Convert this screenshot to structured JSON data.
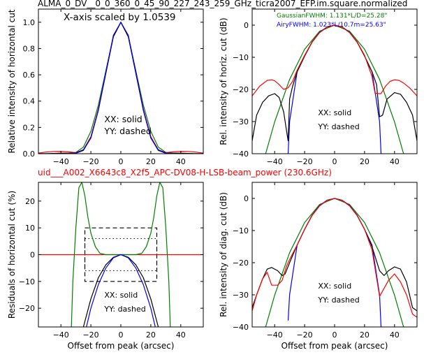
{
  "figure": {
    "title": "ALMA_0_DV__0_0_360_0_45_90_227_243_259_GHz_ticra2007_EFP.im.square.normalized",
    "subtitle": "uid___A002_X6643c8_X2f5_APC-DV08-H-LSB-beam_power (230.6GHz)",
    "subtitle_color": "#ff0000"
  },
  "colors": {
    "XX": "#000000",
    "YY": "#0000ff",
    "diag": "#ff0000",
    "gaussian": "#008000",
    "airy": "#0000ff",
    "zero_line": "#ff0000"
  },
  "chart_data": [
    {
      "id": "top-left",
      "type": "line",
      "annotation": "X-axis scaled by 1.0539",
      "xlabel": "",
      "ylabel": "Relative intensity of horizontal cut",
      "xlim": [
        -55,
        55
      ],
      "ylim": [
        0,
        1.1
      ],
      "xticks": [
        -40,
        -20,
        0,
        20,
        40
      ],
      "yticks": [
        0.0,
        0.2,
        0.4,
        0.6,
        0.8,
        1.0
      ],
      "ytick_labels": [
        "0.0",
        "0.2",
        "0.4",
        "0.6",
        "0.8",
        "1.0"
      ],
      "legend_lines": [
        "XX: solid",
        "YY: dashed"
      ],
      "legend_pos": [
        -11,
        0.24
      ],
      "series": [
        {
          "color": "#008000",
          "x": [
            -55,
            -50,
            -45,
            -40,
            -35,
            -30,
            -25,
            -20,
            -15,
            -10,
            -5,
            0,
            5,
            10,
            15,
            20,
            25,
            30,
            35,
            40,
            45,
            50,
            55
          ],
          "y": [
            0,
            0,
            0,
            0,
            0.002,
            0.01,
            0.05,
            0.17,
            0.37,
            0.63,
            0.89,
            1.0,
            0.89,
            0.63,
            0.37,
            0.17,
            0.05,
            0.01,
            0.002,
            0,
            0,
            0,
            0
          ]
        },
        {
          "color": "#ff0000",
          "x": [
            -55,
            -50,
            -45,
            -40,
            -35,
            -30,
            -25,
            -20,
            -15,
            -10,
            -5,
            0,
            5,
            10,
            15,
            20,
            25,
            30,
            35,
            40,
            45,
            50,
            55
          ],
          "y": [
            0.005,
            0.012,
            0.017,
            0.018,
            0.014,
            0.008,
            0.03,
            0.13,
            0.34,
            0.62,
            0.89,
            1.0,
            0.89,
            0.62,
            0.34,
            0.13,
            0.03,
            0.008,
            0.014,
            0.018,
            0.017,
            0.012,
            0.005
          ]
        },
        {
          "color": "#000000",
          "x": [
            -55,
            -50,
            -45,
            -40,
            -35,
            -30,
            -25,
            -20,
            -15,
            -10,
            -5,
            0,
            5,
            10,
            15,
            20,
            25,
            30,
            35,
            40,
            45,
            50,
            55
          ],
          "y": [
            0,
            0,
            0.002,
            0.004,
            0.004,
            0.005,
            0.03,
            0.12,
            0.33,
            0.61,
            0.89,
            1.0,
            0.89,
            0.61,
            0.33,
            0.12,
            0.03,
            0.005,
            0.004,
            0.004,
            0.002,
            0,
            0
          ]
        },
        {
          "color": "#0000ff",
          "x": [
            -55,
            -50,
            -45,
            -40,
            -35,
            -30,
            -25,
            -20,
            -15,
            -10,
            -5,
            0,
            5,
            10,
            15,
            20,
            25,
            30,
            35,
            40,
            45,
            50,
            55
          ],
          "y": [
            0,
            0,
            0,
            0,
            0,
            0.003,
            0.025,
            0.12,
            0.33,
            0.62,
            0.9,
            1.0,
            0.9,
            0.62,
            0.33,
            0.12,
            0.025,
            0.003,
            0,
            0,
            0,
            0,
            0
          ]
        }
      ]
    },
    {
      "id": "top-right",
      "type": "line",
      "xlabel": "",
      "ylabel": "Rel. intensity of horiz. cut (dB)",
      "xlim": [
        -55,
        55
      ],
      "ylim": [
        -40,
        5
      ],
      "xticks": [
        -40,
        -20,
        0,
        20,
        40
      ],
      "yticks": [
        0,
        -10,
        -20,
        -30,
        -40
      ],
      "ytick_labels": [
        "0",
        "−10",
        "−20",
        "−30",
        "−40"
      ],
      "legend_lines": [
        "XX: solid",
        "YY: dashed"
      ],
      "legend_pos": [
        -11,
        -28
      ],
      "notes": [
        {
          "text": "GaussianFWHM: 1.131*L/D=25.28\"",
          "color": "#008000"
        },
        {
          "text": "AiryFWHM: 1.023*L/10.7m=25.63\"",
          "color": "#0000ff"
        }
      ],
      "series": [
        {
          "color": "#008000",
          "x": [
            -46,
            -40,
            -30,
            -20,
            -10,
            0,
            10,
            20,
            30,
            40,
            46
          ],
          "y": [
            -40,
            -30.1,
            -16.9,
            -7.5,
            -1.9,
            0,
            -1.9,
            -7.5,
            -16.9,
            -30.1,
            -40
          ]
        },
        {
          "color": "#0000ff",
          "x": [
            -31,
            -30,
            -25,
            -20,
            -15,
            -10,
            -5,
            0,
            5,
            10,
            15,
            20,
            25,
            30,
            31
          ],
          "y": [
            -40,
            -30,
            -14.5,
            -9.6,
            -5.2,
            -2.2,
            -0.55,
            0,
            -0.55,
            -2.2,
            -5.2,
            -9.6,
            -14.5,
            -30,
            -40
          ]
        },
        {
          "color": "#000000",
          "x": [
            -55,
            -52,
            -48,
            -44,
            -40,
            -37,
            -34,
            -32,
            -31,
            -30,
            -28,
            -25,
            -20,
            -15,
            -10,
            -5,
            0,
            5,
            10,
            15,
            20,
            25,
            28,
            30,
            32,
            35,
            40,
            44,
            48,
            52,
            55
          ],
          "y": [
            -36,
            -28,
            -24,
            -22,
            -21.3,
            -22.5,
            -27,
            -33,
            -36,
            -23,
            -19,
            -14.5,
            -9.6,
            -5.3,
            -2.3,
            -0.6,
            0,
            -0.6,
            -2.3,
            -5.3,
            -9.6,
            -14.5,
            -18.5,
            -28.5,
            -28,
            -23,
            -21,
            -21.5,
            -24,
            -28,
            -36
          ]
        },
        {
          "color": "#ff0000",
          "x": [
            -55,
            -50,
            -45,
            -42,
            -40,
            -37,
            -34,
            -31,
            -30,
            -28,
            -25,
            -20,
            -15,
            -10,
            -5,
            0,
            5,
            10,
            15,
            20,
            25,
            27,
            29,
            31,
            34,
            37,
            40,
            43,
            46,
            50,
            55
          ],
          "y": [
            -22,
            -19,
            -17.2,
            -17,
            -17.3,
            -18.5,
            -20,
            -19.5,
            -18.8,
            -17.5,
            -14,
            -9.4,
            -5.2,
            -2.3,
            -0.6,
            0,
            -0.6,
            -2.3,
            -5.2,
            -9.4,
            -16,
            -21.2,
            -21.3,
            -21.3,
            -19,
            -17.5,
            -17,
            -17.2,
            -18,
            -19.5,
            -22
          ]
        }
      ]
    },
    {
      "id": "bottom-left",
      "type": "line",
      "xlabel": "Offset from peak (arcsec)",
      "ylabel": "Residuals of horizontal cut (%)",
      "xlim": [
        -55,
        55
      ],
      "ylim": [
        -27,
        27
      ],
      "xticks": [
        -40,
        -20,
        0,
        20,
        40
      ],
      "yticks": [
        20,
        10,
        0,
        -10,
        -20
      ],
      "ytick_labels": [
        "20",
        "10",
        "0",
        "−10",
        "−20"
      ],
      "legend_lines": [
        "XX: solid",
        "YY: dashed"
      ],
      "legend_pos": [
        -11,
        -16
      ],
      "box_dashed": {
        "x": [
          -24,
          24
        ],
        "y": [
          -10,
          10
        ]
      },
      "box_dotted": {
        "x": [
          -24,
          24
        ],
        "y": [
          -6,
          6
        ]
      },
      "series": [
        {
          "color": "#ff0000",
          "x": [
            -55,
            55
          ],
          "y": [
            0,
            0
          ]
        },
        {
          "color": "#008000",
          "x": [
            -33,
            -32,
            -30,
            -28,
            -26,
            -24,
            -22,
            -20,
            -17,
            -14,
            -10,
            -5,
            0,
            5,
            10,
            14,
            17,
            20,
            22,
            24,
            26,
            28,
            30,
            32,
            33
          ],
          "y": [
            -27,
            -10,
            10,
            25,
            27,
            22,
            14,
            8,
            3,
            0.5,
            0,
            0,
            0,
            0,
            0,
            0.5,
            3,
            8,
            14,
            22,
            27,
            25,
            10,
            -10,
            -27
          ]
        },
        {
          "color": "#000000",
          "x": [
            -25,
            -20,
            -15,
            -10,
            -5,
            0,
            5,
            10,
            15,
            20,
            25
          ],
          "y": [
            -27,
            -16.5,
            -8.6,
            -3.8,
            -1,
            0,
            -1,
            -3.8,
            -8.6,
            -16.5,
            -27
          ]
        },
        {
          "color": "#0000ff",
          "x": [
            -23,
            -20,
            -15,
            -10,
            -5,
            0,
            5,
            10,
            15,
            20,
            23
          ],
          "y": [
            -27,
            -20,
            -11.2,
            -5,
            -1.2,
            0,
            -1.2,
            -5,
            -11.2,
            -20,
            -27
          ]
        }
      ]
    },
    {
      "id": "bottom-right",
      "type": "line",
      "xlabel": "Offset from peak (arcsec)",
      "ylabel": "Rel. intensity of diag. cut (dB)",
      "xlim": [
        -55,
        55
      ],
      "ylim": [
        -40,
        5
      ],
      "xticks": [
        -40,
        -20,
        0,
        20,
        40
      ],
      "yticks": [
        0,
        -10,
        -20,
        -30,
        -40
      ],
      "ytick_labels": [
        "0",
        "−10",
        "−20",
        "−30",
        "−40"
      ],
      "legend_lines": [
        "XX: solid",
        "YY: dashed"
      ],
      "legend_pos": [
        -11,
        -28
      ],
      "series": [
        {
          "color": "#008000",
          "x": [
            -46,
            -40,
            -30,
            -20,
            -10,
            0,
            10,
            20,
            30,
            40,
            46
          ],
          "y": [
            -40,
            -30.1,
            -16.9,
            -7.5,
            -1.9,
            0,
            -1.9,
            -7.5,
            -16.9,
            -30.1,
            -40
          ]
        },
        {
          "color": "#0000ff",
          "x": [
            -31,
            -30,
            -25,
            -20,
            -15,
            -10,
            -5,
            0,
            5,
            10,
            15,
            20,
            25,
            30,
            31
          ],
          "y": [
            -38,
            -30,
            -14.5,
            -9.6,
            -5.2,
            -2.2,
            -0.55,
            0,
            -0.55,
            -2.2,
            -5.2,
            -9.6,
            -14.5,
            -30,
            -40
          ]
        },
        {
          "color": "#000000",
          "x": [
            -55,
            -52,
            -48,
            -45,
            -42,
            -38,
            -35,
            -33,
            -30,
            -25,
            -20,
            -15,
            -10,
            -5,
            0,
            5,
            10,
            15,
            20,
            25,
            30,
            33,
            36,
            40,
            44,
            48,
            52,
            55
          ],
          "y": [
            -34,
            -30,
            -25,
            -22,
            -21.5,
            -22.5,
            -24,
            -23.5,
            -20,
            -14.5,
            -9.6,
            -5.3,
            -2.3,
            -0.6,
            0,
            -0.6,
            -2.3,
            -5.3,
            -9.6,
            -15,
            -22.5,
            -24,
            -22.5,
            -21.3,
            -22,
            -26,
            -34,
            -35
          ]
        },
        {
          "color": "#ff0000",
          "x": [
            -55,
            -52,
            -48,
            -45,
            -42,
            -38,
            -35,
            -32,
            -30,
            -25,
            -20,
            -15,
            -10,
            -5,
            0,
            5,
            10,
            15,
            20,
            25,
            30,
            33,
            36,
            40,
            44,
            48,
            52,
            55
          ],
          "y": [
            -35,
            -30,
            -25,
            -23,
            -27,
            -27,
            -25.5,
            -21,
            -19,
            -14.5,
            -9.6,
            -5.3,
            -2.3,
            -0.6,
            0,
            -0.6,
            -2.3,
            -5.3,
            -9.6,
            -16,
            -30.5,
            -28,
            -25.5,
            -23.5,
            -26,
            -30,
            -36,
            -37
          ]
        }
      ]
    }
  ]
}
